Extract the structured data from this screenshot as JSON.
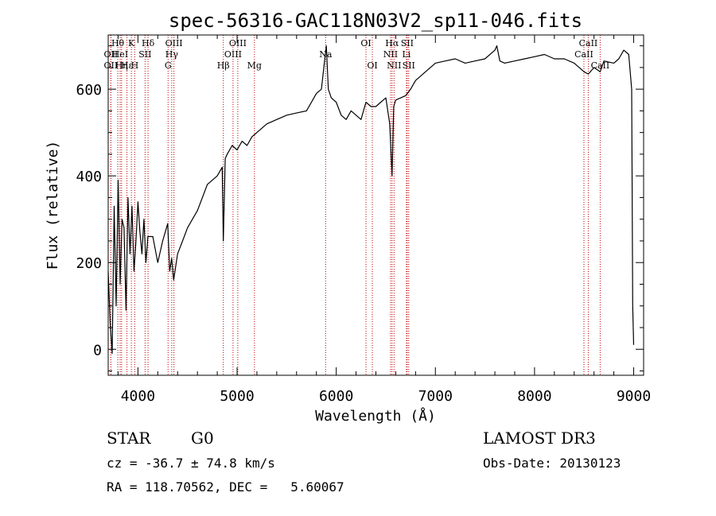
{
  "chart_data": {
    "type": "line",
    "title": "spec-56316-GAC118N03V2_sp11-046.fits",
    "xlabel": "Wavelength (Å)",
    "ylabel": "Flux (relative)",
    "xlim": [
      3700,
      9100
    ],
    "ylim": [
      -60,
      725
    ],
    "xticks": [
      4000,
      5000,
      6000,
      7000,
      8000,
      9000
    ],
    "yticks": [
      0,
      200,
      400,
      600
    ],
    "series": [
      {
        "name": "flux",
        "x": [
          3700,
          3720,
          3740,
          3760,
          3780,
          3800,
          3820,
          3840,
          3860,
          3880,
          3900,
          3920,
          3940,
          3960,
          3980,
          4000,
          4020,
          4040,
          4060,
          4080,
          4100,
          4150,
          4200,
          4250,
          4300,
          4320,
          4340,
          4360,
          4400,
          4450,
          4500,
          4550,
          4600,
          4650,
          4700,
          4750,
          4800,
          4850,
          4861,
          4880,
          4900,
          4950,
          5000,
          5050,
          5100,
          5150,
          5200,
          5300,
          5400,
          5500,
          5600,
          5700,
          5800,
          5850,
          5890,
          5900,
          5920,
          5950,
          6000,
          6050,
          6100,
          6150,
          6200,
          6250,
          6300,
          6350,
          6400,
          6450,
          6500,
          6540,
          6563,
          6580,
          6600,
          6650,
          6700,
          6750,
          6800,
          6850,
          6900,
          6950,
          7000,
          7100,
          7200,
          7300,
          7400,
          7500,
          7600,
          7620,
          7650,
          7700,
          7800,
          7900,
          8000,
          8100,
          8200,
          8300,
          8400,
          8500,
          8542,
          8600,
          8662,
          8700,
          8800,
          8850,
          8900,
          8950,
          8980,
          8990,
          9000
        ],
        "values": [
          180,
          60,
          -10,
          330,
          100,
          390,
          150,
          300,
          280,
          90,
          350,
          220,
          330,
          180,
          250,
          340,
          270,
          220,
          300,
          200,
          260,
          260,
          200,
          250,
          290,
          180,
          210,
          160,
          220,
          250,
          280,
          300,
          320,
          350,
          380,
          390,
          400,
          420,
          250,
          440,
          450,
          470,
          460,
          480,
          470,
          490,
          500,
          520,
          530,
          540,
          545,
          550,
          590,
          600,
          680,
          700,
          600,
          580,
          570,
          540,
          530,
          550,
          540,
          530,
          570,
          560,
          560,
          570,
          580,
          520,
          400,
          560,
          575,
          580,
          585,
          600,
          620,
          630,
          640,
          650,
          660,
          665,
          670,
          660,
          665,
          670,
          690,
          700,
          665,
          660,
          665,
          670,
          675,
          680,
          670,
          670,
          660,
          640,
          635,
          650,
          640,
          665,
          660,
          670,
          690,
          680,
          600,
          100,
          10
        ]
      }
    ],
    "emission_lines": [
      {
        "wavelength": 3727,
        "label": "OII",
        "row": 2
      },
      {
        "wavelength": 3727,
        "label": "OII",
        "row": 3
      },
      {
        "wavelength": 3797,
        "label": "Hθ",
        "row": 1
      },
      {
        "wavelength": 3820,
        "label": "HeI",
        "row": 2
      },
      {
        "wavelength": 3835,
        "label": "Hη",
        "row": 3
      },
      {
        "wavelength": 3889,
        "label": "Hε",
        "row": 3
      },
      {
        "wavelength": 3934,
        "label": "K",
        "row": 1
      },
      {
        "wavelength": 3968,
        "label": "H",
        "row": 3
      },
      {
        "wavelength": 4072,
        "label": "SII",
        "row": 2
      },
      {
        "wavelength": 4102,
        "label": "Hδ",
        "row": 1
      },
      {
        "wavelength": 4304,
        "label": "G",
        "row": 3
      },
      {
        "wavelength": 4341,
        "label": "Hγ",
        "row": 2
      },
      {
        "wavelength": 4363,
        "label": "OIII",
        "row": 1
      },
      {
        "wavelength": 4861,
        "label": "Hβ",
        "row": 3
      },
      {
        "wavelength": 4959,
        "label": "OIII",
        "row": 2
      },
      {
        "wavelength": 5007,
        "label": "OIII",
        "row": 1
      },
      {
        "wavelength": 5175,
        "label": "Mg",
        "row": 3
      },
      {
        "wavelength": 5893,
        "label": "Na",
        "row": 2
      },
      {
        "wavelength": 6300,
        "label": "OI",
        "row": 1
      },
      {
        "wavelength": 6364,
        "label": "OI",
        "row": 3
      },
      {
        "wavelength": 6548,
        "label": "NII",
        "row": 2
      },
      {
        "wavelength": 6563,
        "label": "Hα",
        "row": 1
      },
      {
        "wavelength": 6583,
        "label": "NII",
        "row": 3
      },
      {
        "wavelength": 6708,
        "label": "Li",
        "row": 2
      },
      {
        "wavelength": 6716,
        "label": "SII",
        "row": 1
      },
      {
        "wavelength": 6731,
        "label": "SII",
        "row": 3
      },
      {
        "wavelength": 8498,
        "label": "CaII",
        "row": 2
      },
      {
        "wavelength": 8542,
        "label": "CaII",
        "row": 1
      },
      {
        "wavelength": 8662,
        "label": "CaII",
        "row": 3
      }
    ]
  },
  "info": {
    "object_class": "STAR",
    "subclass": "G0",
    "survey": "LAMOST DR3",
    "redshift_text": "cz = -36.7 ± 74.8 km/s",
    "obs_date_text": "Obs-Date: 20130123",
    "coords_text": "RA = 118.70562, DEC =   5.60067"
  },
  "colors": {
    "line": "#000000",
    "marker": "#c00000",
    "background": "#ffffff"
  }
}
